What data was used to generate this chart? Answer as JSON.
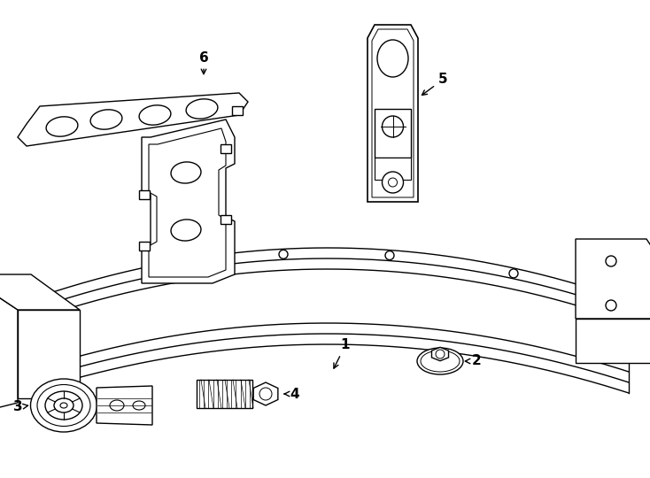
{
  "background_color": "#ffffff",
  "line_color": "#000000",
  "line_width": 1.0,
  "fig_width": 7.34,
  "fig_height": 5.4,
  "dpi": 100
}
